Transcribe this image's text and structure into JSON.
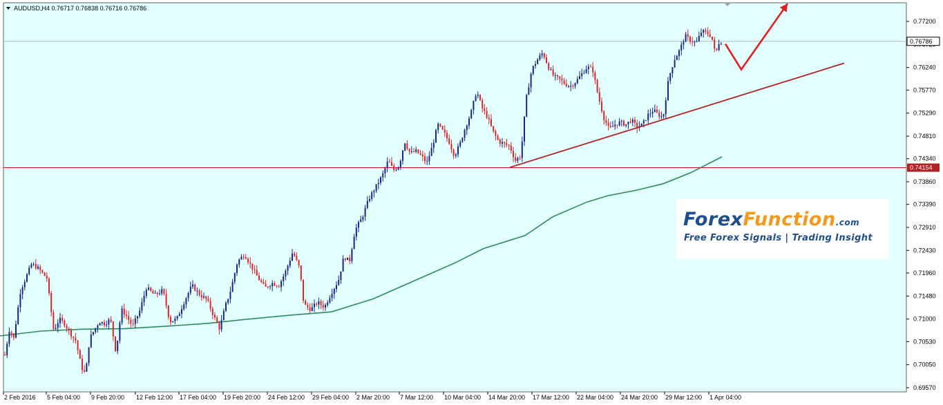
{
  "header": {
    "title": "AUDUSD,H4  0.76717 0.76838 0.76716 0.76786"
  },
  "logo": {
    "forex": "Forex",
    "function": "Function",
    "com": ".com",
    "tagline": "Free Forex Signals | Trading Insight"
  },
  "colors": {
    "background": "#e0fffe",
    "bull_candle": "#1a2385",
    "bear_candle": "#e0212a",
    "moving_average": "#2e8b57",
    "support_line": "#b22222",
    "trend_line": "#b22222",
    "forecast_arrow": "#e02020",
    "last_price_tag": "#ffffff",
    "support_tag": "#b22222"
  },
  "chart_data": {
    "type": "candlestick",
    "symbol": "AUDUSD",
    "timeframe": "H4",
    "ohlc_last": {
      "open": 0.76717,
      "high": 0.76838,
      "low": 0.76716,
      "close": 0.76786
    },
    "ylim": [
      0.694,
      0.777
    ],
    "y_ticks": [
      "0.77200",
      "0.76720",
      "0.76240",
      "0.75770",
      "0.75290",
      "0.74810",
      "0.74340",
      "0.73860",
      "0.73390",
      "0.72910",
      "0.72430",
      "0.71960",
      "0.71480",
      "0.71000",
      "0.70530",
      "0.70050",
      "0.69570"
    ],
    "x_ticks": [
      "2 Feb 2016",
      "5 Feb 04:00",
      "9 Feb 20:00",
      "12 Feb 12:00",
      "17 Feb 04:00",
      "19 Feb 20:00",
      "24 Feb 12:00",
      "29 Feb 04:00",
      "2 Mar 20:00",
      "7 Mar 12:00",
      "10 Mar 04:00",
      "14 Mar 20:00",
      "17 Mar 12:00",
      "22 Mar 04:00",
      "24 Mar 20:00",
      "29 Mar 12:00",
      "1 Apr 04:00"
    ],
    "last_price": {
      "label": "0.76786",
      "value": 0.76786
    },
    "support_level": {
      "label": "0.74154",
      "value": 0.74154
    },
    "price_path": [
      [
        0,
        0.706
      ],
      [
        8,
        0.7015
      ],
      [
        16,
        0.708
      ],
      [
        22,
        0.706
      ],
      [
        32,
        0.716
      ],
      [
        48,
        0.7215
      ],
      [
        58,
        0.7205
      ],
      [
        70,
        0.7185
      ],
      [
        80,
        0.7075
      ],
      [
        88,
        0.71
      ],
      [
        96,
        0.709
      ],
      [
        104,
        0.707
      ],
      [
        112,
        0.7055
      ],
      [
        120,
        0.7
      ],
      [
        126,
        0.6985
      ],
      [
        132,
        0.706
      ],
      [
        138,
        0.7075
      ],
      [
        146,
        0.7095
      ],
      [
        154,
        0.709
      ],
      [
        162,
        0.71
      ],
      [
        170,
        0.703
      ],
      [
        178,
        0.712
      ],
      [
        186,
        0.7105
      ],
      [
        194,
        0.7085
      ],
      [
        204,
        0.7115
      ],
      [
        214,
        0.7165
      ],
      [
        226,
        0.715
      ],
      [
        238,
        0.716
      ],
      [
        248,
        0.7095
      ],
      [
        258,
        0.71
      ],
      [
        270,
        0.714
      ],
      [
        280,
        0.717
      ],
      [
        292,
        0.715
      ],
      [
        302,
        0.714
      ],
      [
        312,
        0.7105
      ],
      [
        320,
        0.708
      ],
      [
        328,
        0.7125
      ],
      [
        336,
        0.716
      ],
      [
        346,
        0.722
      ],
      [
        356,
        0.7235
      ],
      [
        366,
        0.721
      ],
      [
        376,
        0.7185
      ],
      [
        386,
        0.7165
      ],
      [
        396,
        0.7175
      ],
      [
        406,
        0.717
      ],
      [
        416,
        0.72
      ],
      [
        426,
        0.724
      ],
      [
        436,
        0.7205
      ],
      [
        442,
        0.713
      ],
      [
        452,
        0.712
      ],
      [
        462,
        0.7135
      ],
      [
        472,
        0.7125
      ],
      [
        482,
        0.7155
      ],
      [
        492,
        0.718
      ],
      [
        500,
        0.723
      ],
      [
        508,
        0.722
      ],
      [
        516,
        0.7285
      ],
      [
        526,
        0.731
      ],
      [
        536,
        0.735
      ],
      [
        546,
        0.7375
      ],
      [
        556,
        0.74
      ],
      [
        564,
        0.743
      ],
      [
        572,
        0.741
      ],
      [
        580,
        0.742
      ],
      [
        588,
        0.747
      ],
      [
        596,
        0.7445
      ],
      [
        604,
        0.745
      ],
      [
        612,
        0.744
      ],
      [
        620,
        0.7425
      ],
      [
        628,
        0.746
      ],
      [
        636,
        0.7505
      ],
      [
        644,
        0.749
      ],
      [
        652,
        0.747
      ],
      [
        660,
        0.744
      ],
      [
        668,
        0.7465
      ],
      [
        676,
        0.75
      ],
      [
        684,
        0.753
      ],
      [
        692,
        0.7575
      ],
      [
        700,
        0.754
      ],
      [
        708,
        0.752
      ],
      [
        716,
        0.749
      ],
      [
        724,
        0.747
      ],
      [
        732,
        0.7465
      ],
      [
        740,
        0.746
      ],
      [
        748,
        0.743
      ],
      [
        756,
        0.744
      ],
      [
        764,
        0.756
      ],
      [
        772,
        0.762
      ],
      [
        780,
        0.764
      ],
      [
        788,
        0.7655
      ],
      [
        796,
        0.7625
      ],
      [
        804,
        0.7605
      ],
      [
        812,
        0.76
      ],
      [
        820,
        0.759
      ],
      [
        828,
        0.7585
      ],
      [
        836,
        0.7595
      ],
      [
        844,
        0.761
      ],
      [
        852,
        0.7625
      ],
      [
        860,
        0.762
      ],
      [
        868,
        0.7565
      ],
      [
        876,
        0.752
      ],
      [
        884,
        0.7495
      ],
      [
        892,
        0.7505
      ],
      [
        900,
        0.751
      ],
      [
        908,
        0.7505
      ],
      [
        916,
        0.7515
      ],
      [
        924,
        0.75
      ],
      [
        932,
        0.7505
      ],
      [
        940,
        0.7525
      ],
      [
        948,
        0.7535
      ],
      [
        956,
        0.7525
      ],
      [
        962,
        0.752
      ],
      [
        970,
        0.76
      ],
      [
        978,
        0.764
      ],
      [
        986,
        0.766
      ],
      [
        994,
        0.769
      ],
      [
        1002,
        0.768
      ],
      [
        1010,
        0.7675
      ],
      [
        1018,
        0.77
      ],
      [
        1026,
        0.7695
      ],
      [
        1032,
        0.769
      ],
      [
        1038,
        0.765
      ],
      [
        1042,
        0.7675
      ],
      [
        1048,
        0.7679
      ]
    ],
    "moving_average": [
      [
        0,
        0.7065
      ],
      [
        60,
        0.7075
      ],
      [
        120,
        0.7079
      ],
      [
        180,
        0.708
      ],
      [
        240,
        0.7085
      ],
      [
        300,
        0.7091
      ],
      [
        360,
        0.71
      ],
      [
        420,
        0.7108
      ],
      [
        480,
        0.7115
      ],
      [
        540,
        0.7142
      ],
      [
        600,
        0.718
      ],
      [
        660,
        0.7218
      ],
      [
        700,
        0.7247
      ],
      [
        760,
        0.7274
      ],
      [
        800,
        0.7313
      ],
      [
        850,
        0.7344
      ],
      [
        880,
        0.7357
      ],
      [
        920,
        0.7368
      ],
      [
        960,
        0.7382
      ],
      [
        1000,
        0.7405
      ],
      [
        1045,
        0.7438
      ]
    ],
    "trend_line": {
      "start": [
        738,
        0.7416
      ],
      "end": [
        1222,
        0.7633
      ]
    },
    "forecast_arrow": [
      [
        1050,
        0.7673
      ],
      [
        1073,
        0.762
      ],
      [
        1140,
        0.7757
      ]
    ]
  }
}
